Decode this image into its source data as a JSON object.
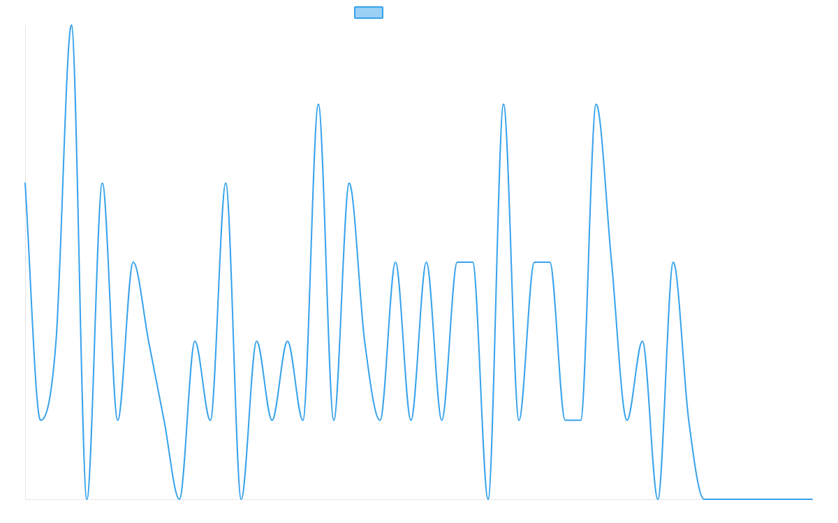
{
  "chart_data": {
    "type": "line",
    "title": "",
    "xlabel": "",
    "ylabel": "",
    "legend": {
      "placement": "top-center"
    },
    "grid": false,
    "x": [
      0,
      1,
      2,
      3,
      4,
      5,
      6,
      7,
      8,
      9,
      10,
      11,
      12,
      13,
      14,
      15,
      16,
      17,
      18,
      19,
      20,
      21,
      22,
      23,
      24,
      25,
      26,
      27,
      28,
      29,
      30,
      31,
      32,
      33,
      34,
      35,
      36,
      37,
      38,
      39,
      40,
      41,
      42,
      43,
      44,
      45,
      46,
      47,
      48,
      49,
      50,
      51
    ],
    "xlim": [
      0,
      51
    ],
    "ylim": [
      0,
      6
    ],
    "series": [
      {
        "color": "#36a2eb",
        "fill": "#9ad0f5",
        "values": [
          4,
          1,
          2,
          6,
          0,
          4,
          1,
          3,
          2,
          1,
          0,
          2,
          1,
          4,
          0,
          2,
          1,
          2,
          1,
          5,
          1,
          4,
          2,
          1,
          3,
          1,
          3,
          1,
          3,
          3,
          0,
          5,
          1,
          3,
          3,
          1,
          1,
          5,
          3,
          1,
          2,
          0,
          3,
          1,
          0,
          0,
          0,
          0,
          0,
          0,
          0,
          0
        ]
      }
    ]
  }
}
